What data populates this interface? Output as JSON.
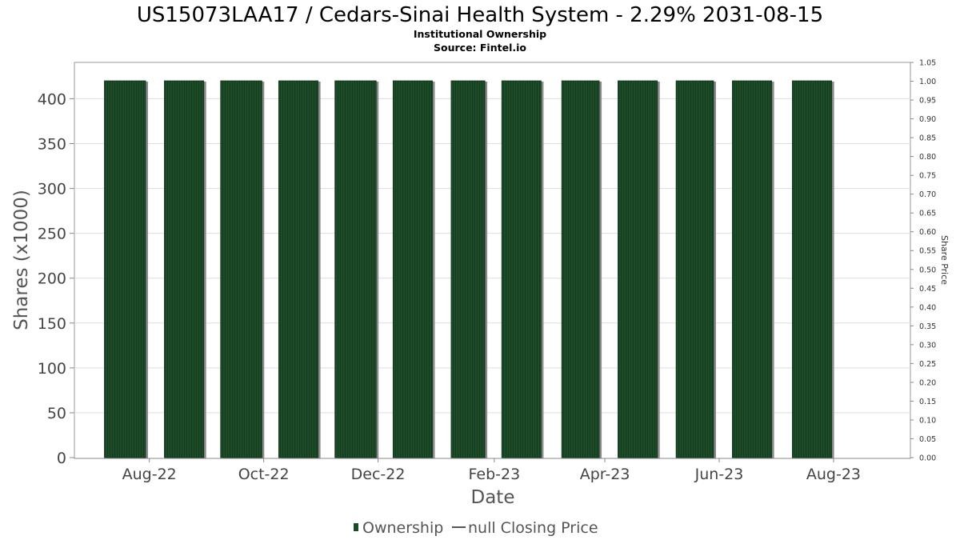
{
  "chart_data": {
    "type": "bar",
    "title": "US15073LAA17 / Cedars-Sinai Health System - 2.29% 2031-08-15",
    "subtitles": [
      "Institutional Ownership",
      "Source: Fintel.io"
    ],
    "xlabel": "Date",
    "ylabel": "Shares (x1000)",
    "ylabel_right": "Share Price",
    "ylim": [
      0,
      420
    ],
    "ylim_right": [
      0,
      1.05
    ],
    "yticks": [
      "0",
      "50",
      "100",
      "150",
      "200",
      "250",
      "300",
      "350",
      "400"
    ],
    "yticks_right": [
      "0.00",
      "0.05",
      "0.10",
      "0.15",
      "0.20",
      "0.25",
      "0.30",
      "0.35",
      "0.40",
      "0.45",
      "0.50",
      "0.55",
      "0.60",
      "0.65",
      "0.70",
      "0.75",
      "0.80",
      "0.85",
      "0.90",
      "0.95",
      "1.00",
      "1.05"
    ],
    "x_tick_labels": [
      "Aug-22",
      "Oct-22",
      "Dec-22",
      "Feb-23",
      "Apr-23",
      "Jun-23",
      "Aug-23"
    ],
    "x_tick_dates": [
      "2022-08-01",
      "2022-10-01",
      "2022-12-01",
      "2023-02-01",
      "2023-04-01",
      "2023-06-01",
      "2023-08-01"
    ],
    "x_range": [
      "2022-06-22",
      "2023-09-11"
    ],
    "bars": [
      {
        "start": "2022-07-08",
        "end": "2022-07-30",
        "value": 420
      },
      {
        "start": "2022-08-09",
        "end": "2022-08-30",
        "value": 420
      },
      {
        "start": "2022-09-08",
        "end": "2022-09-30",
        "value": 420
      },
      {
        "start": "2022-10-09",
        "end": "2022-10-30",
        "value": 420
      },
      {
        "start": "2022-11-08",
        "end": "2022-11-30",
        "value": 420
      },
      {
        "start": "2022-12-09",
        "end": "2022-12-30",
        "value": 420
      },
      {
        "start": "2023-01-09",
        "end": "2023-01-27",
        "value": 420
      },
      {
        "start": "2023-02-05",
        "end": "2023-02-26",
        "value": 420
      },
      {
        "start": "2023-03-09",
        "end": "2023-03-29",
        "value": 420
      },
      {
        "start": "2023-04-08",
        "end": "2023-04-29",
        "value": 420
      },
      {
        "start": "2023-05-09",
        "end": "2023-05-29",
        "value": 420
      },
      {
        "start": "2023-06-08",
        "end": "2023-06-29",
        "value": 420
      },
      {
        "start": "2023-07-10",
        "end": "2023-07-31",
        "value": 420
      }
    ],
    "series": [
      {
        "name": "Ownership",
        "color": "#1b4b26"
      },
      {
        "name": "null Closing Price",
        "color": "#555555"
      }
    ],
    "grid": true,
    "legend_position": "bottom"
  }
}
